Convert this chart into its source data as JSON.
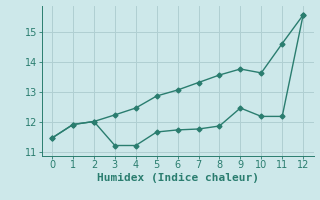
{
  "line1_x": [
    0,
    1,
    2,
    3,
    4,
    5,
    6,
    7,
    8,
    9,
    10,
    11,
    12
  ],
  "line1_y": [
    11.45,
    11.9,
    12.0,
    12.22,
    12.45,
    12.85,
    13.05,
    13.3,
    13.55,
    13.75,
    13.62,
    14.6,
    15.55
  ],
  "line2_x": [
    0,
    1,
    2,
    3,
    4,
    5,
    6,
    7,
    8,
    9,
    10,
    11,
    12
  ],
  "line2_y": [
    11.45,
    11.9,
    12.0,
    11.2,
    11.2,
    11.65,
    11.72,
    11.75,
    11.85,
    12.45,
    12.17,
    12.17,
    15.55
  ],
  "color": "#2a7d6f",
  "bg_color": "#cde8ea",
  "grid_color": "#b0cfd2",
  "xlabel": "Humidex (Indice chaleur)",
  "xlim": [
    -0.5,
    12.5
  ],
  "ylim": [
    10.85,
    15.85
  ],
  "yticks": [
    11,
    12,
    13,
    14,
    15
  ],
  "xticks": [
    0,
    1,
    2,
    3,
    4,
    5,
    6,
    7,
    8,
    9,
    10,
    11,
    12
  ],
  "marker": "D",
  "marker_size": 2.5,
  "linewidth": 1.0,
  "xlabel_fontsize": 8,
  "tick_fontsize": 7
}
